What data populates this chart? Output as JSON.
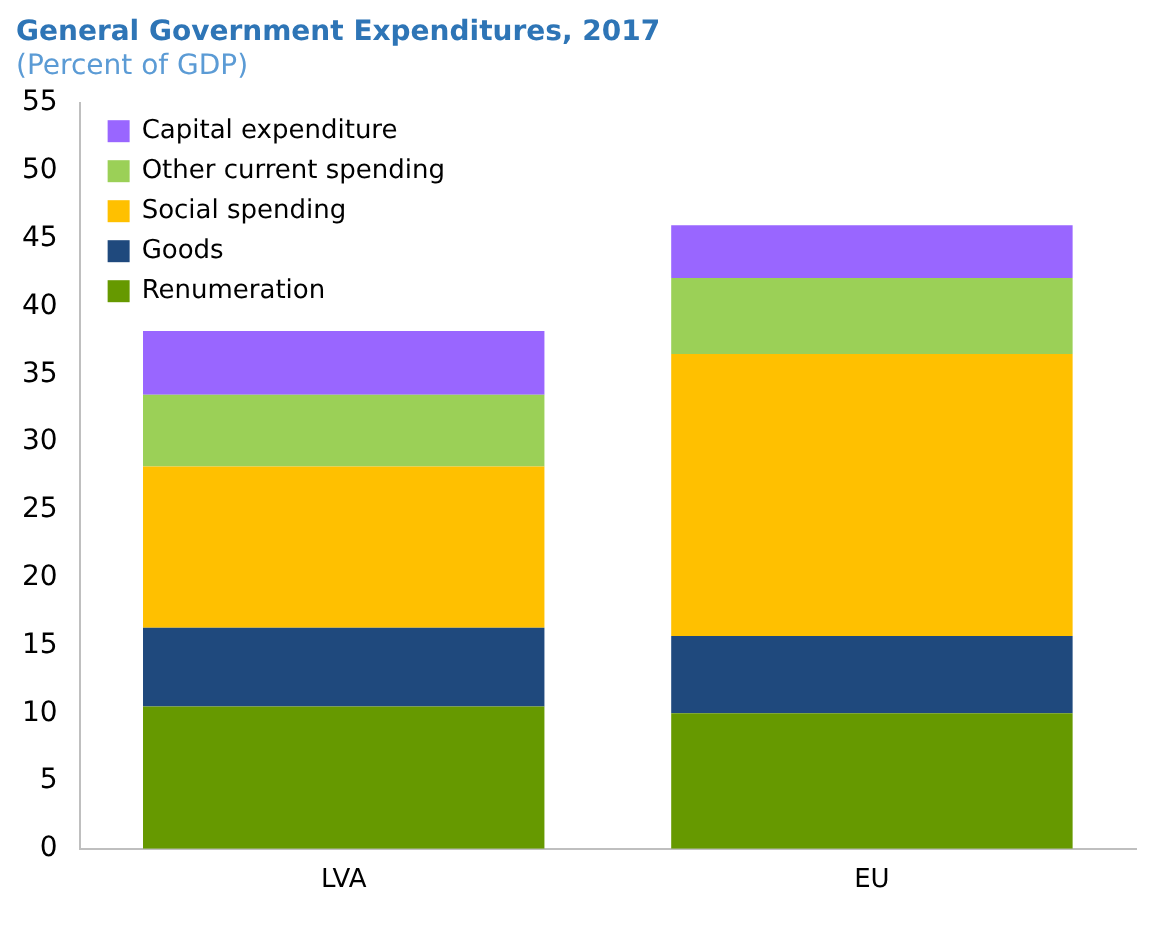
{
  "chart_data": {
    "type": "bar",
    "title": "General Government Expenditures, 2017",
    "subtitle": "(Percent of GDP)",
    "categories": [
      "LVA",
      "EU"
    ],
    "stacked": true,
    "series": [
      {
        "name": "Renumeration",
        "color": "#669900",
        "values": [
          10.5,
          10.0
        ]
      },
      {
        "name": "Goods",
        "color": "#1f497d",
        "values": [
          5.8,
          5.7
        ]
      },
      {
        "name": "Social spending",
        "color": "#ffc000",
        "values": [
          11.9,
          20.8
        ]
      },
      {
        "name": "Other current spending",
        "color": "#9bd057",
        "values": [
          5.3,
          5.6
        ]
      },
      {
        "name": "Capital expenditure",
        "color": "#9966ff",
        "values": [
          4.7,
          3.9
        ]
      }
    ],
    "ylim": [
      0,
      55
    ],
    "yticks": [
      0,
      5,
      10,
      15,
      20,
      25,
      30,
      35,
      40,
      45,
      50,
      55
    ],
    "grid": false,
    "legend": "top left"
  }
}
